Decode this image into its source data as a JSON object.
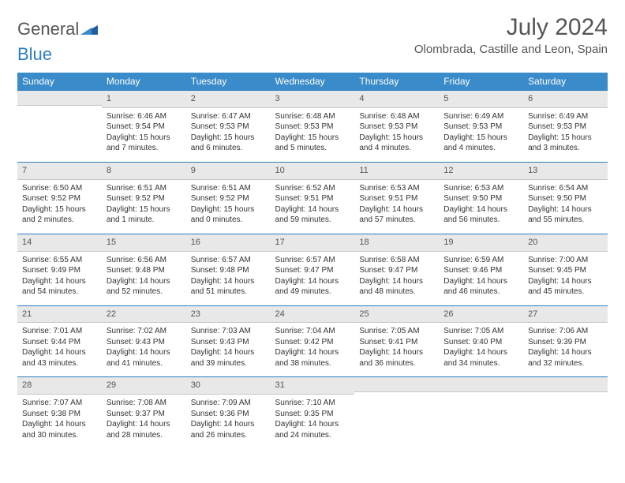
{
  "brand": {
    "word1": "General",
    "word2": "Blue"
  },
  "title": "July 2024",
  "location": "Olombrada, Castille and Leon, Spain",
  "colors": {
    "header_bg": "#3a8bc9",
    "header_text": "#ffffff",
    "rule": "#2d7fc1",
    "dayhead_bg": "#e8e8e8",
    "text": "#333333",
    "title_text": "#555555"
  },
  "daynames": [
    "Sunday",
    "Monday",
    "Tuesday",
    "Wednesday",
    "Thursday",
    "Friday",
    "Saturday"
  ],
  "weeks": [
    [
      null,
      {
        "n": "1",
        "sr": "Sunrise: 6:46 AM",
        "ss": "Sunset: 9:54 PM",
        "dl": "Daylight: 15 hours and 7 minutes."
      },
      {
        "n": "2",
        "sr": "Sunrise: 6:47 AM",
        "ss": "Sunset: 9:53 PM",
        "dl": "Daylight: 15 hours and 6 minutes."
      },
      {
        "n": "3",
        "sr": "Sunrise: 6:48 AM",
        "ss": "Sunset: 9:53 PM",
        "dl": "Daylight: 15 hours and 5 minutes."
      },
      {
        "n": "4",
        "sr": "Sunrise: 6:48 AM",
        "ss": "Sunset: 9:53 PM",
        "dl": "Daylight: 15 hours and 4 minutes."
      },
      {
        "n": "5",
        "sr": "Sunrise: 6:49 AM",
        "ss": "Sunset: 9:53 PM",
        "dl": "Daylight: 15 hours and 4 minutes."
      },
      {
        "n": "6",
        "sr": "Sunrise: 6:49 AM",
        "ss": "Sunset: 9:53 PM",
        "dl": "Daylight: 15 hours and 3 minutes."
      }
    ],
    [
      {
        "n": "7",
        "sr": "Sunrise: 6:50 AM",
        "ss": "Sunset: 9:52 PM",
        "dl": "Daylight: 15 hours and 2 minutes."
      },
      {
        "n": "8",
        "sr": "Sunrise: 6:51 AM",
        "ss": "Sunset: 9:52 PM",
        "dl": "Daylight: 15 hours and 1 minute."
      },
      {
        "n": "9",
        "sr": "Sunrise: 6:51 AM",
        "ss": "Sunset: 9:52 PM",
        "dl": "Daylight: 15 hours and 0 minutes."
      },
      {
        "n": "10",
        "sr": "Sunrise: 6:52 AM",
        "ss": "Sunset: 9:51 PM",
        "dl": "Daylight: 14 hours and 59 minutes."
      },
      {
        "n": "11",
        "sr": "Sunrise: 6:53 AM",
        "ss": "Sunset: 9:51 PM",
        "dl": "Daylight: 14 hours and 57 minutes."
      },
      {
        "n": "12",
        "sr": "Sunrise: 6:53 AM",
        "ss": "Sunset: 9:50 PM",
        "dl": "Daylight: 14 hours and 56 minutes."
      },
      {
        "n": "13",
        "sr": "Sunrise: 6:54 AM",
        "ss": "Sunset: 9:50 PM",
        "dl": "Daylight: 14 hours and 55 minutes."
      }
    ],
    [
      {
        "n": "14",
        "sr": "Sunrise: 6:55 AM",
        "ss": "Sunset: 9:49 PM",
        "dl": "Daylight: 14 hours and 54 minutes."
      },
      {
        "n": "15",
        "sr": "Sunrise: 6:56 AM",
        "ss": "Sunset: 9:48 PM",
        "dl": "Daylight: 14 hours and 52 minutes."
      },
      {
        "n": "16",
        "sr": "Sunrise: 6:57 AM",
        "ss": "Sunset: 9:48 PM",
        "dl": "Daylight: 14 hours and 51 minutes."
      },
      {
        "n": "17",
        "sr": "Sunrise: 6:57 AM",
        "ss": "Sunset: 9:47 PM",
        "dl": "Daylight: 14 hours and 49 minutes."
      },
      {
        "n": "18",
        "sr": "Sunrise: 6:58 AM",
        "ss": "Sunset: 9:47 PM",
        "dl": "Daylight: 14 hours and 48 minutes."
      },
      {
        "n": "19",
        "sr": "Sunrise: 6:59 AM",
        "ss": "Sunset: 9:46 PM",
        "dl": "Daylight: 14 hours and 46 minutes."
      },
      {
        "n": "20",
        "sr": "Sunrise: 7:00 AM",
        "ss": "Sunset: 9:45 PM",
        "dl": "Daylight: 14 hours and 45 minutes."
      }
    ],
    [
      {
        "n": "21",
        "sr": "Sunrise: 7:01 AM",
        "ss": "Sunset: 9:44 PM",
        "dl": "Daylight: 14 hours and 43 minutes."
      },
      {
        "n": "22",
        "sr": "Sunrise: 7:02 AM",
        "ss": "Sunset: 9:43 PM",
        "dl": "Daylight: 14 hours and 41 minutes."
      },
      {
        "n": "23",
        "sr": "Sunrise: 7:03 AM",
        "ss": "Sunset: 9:43 PM",
        "dl": "Daylight: 14 hours and 39 minutes."
      },
      {
        "n": "24",
        "sr": "Sunrise: 7:04 AM",
        "ss": "Sunset: 9:42 PM",
        "dl": "Daylight: 14 hours and 38 minutes."
      },
      {
        "n": "25",
        "sr": "Sunrise: 7:05 AM",
        "ss": "Sunset: 9:41 PM",
        "dl": "Daylight: 14 hours and 36 minutes."
      },
      {
        "n": "26",
        "sr": "Sunrise: 7:05 AM",
        "ss": "Sunset: 9:40 PM",
        "dl": "Daylight: 14 hours and 34 minutes."
      },
      {
        "n": "27",
        "sr": "Sunrise: 7:06 AM",
        "ss": "Sunset: 9:39 PM",
        "dl": "Daylight: 14 hours and 32 minutes."
      }
    ],
    [
      {
        "n": "28",
        "sr": "Sunrise: 7:07 AM",
        "ss": "Sunset: 9:38 PM",
        "dl": "Daylight: 14 hours and 30 minutes."
      },
      {
        "n": "29",
        "sr": "Sunrise: 7:08 AM",
        "ss": "Sunset: 9:37 PM",
        "dl": "Daylight: 14 hours and 28 minutes."
      },
      {
        "n": "30",
        "sr": "Sunrise: 7:09 AM",
        "ss": "Sunset: 9:36 PM",
        "dl": "Daylight: 14 hours and 26 minutes."
      },
      {
        "n": "31",
        "sr": "Sunrise: 7:10 AM",
        "ss": "Sunset: 9:35 PM",
        "dl": "Daylight: 14 hours and 24 minutes."
      },
      null,
      null,
      null
    ]
  ]
}
